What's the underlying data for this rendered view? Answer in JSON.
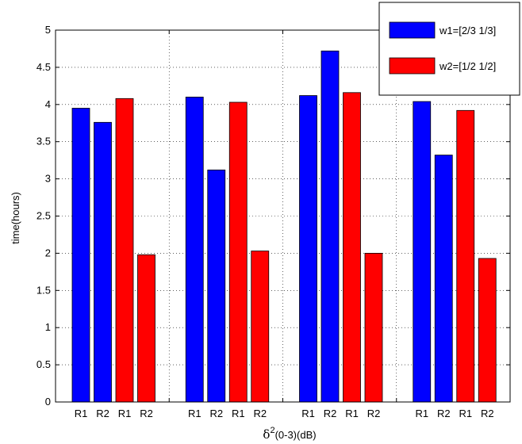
{
  "chart_data": {
    "type": "bar",
    "title": "",
    "ylabel": "time(hours)",
    "xlabel_symbol": "δ",
    "xlabel_sup": "2",
    "xlabel_rest": "(0-3)(dB)",
    "ylim": [
      0,
      5
    ],
    "yticks": [
      "0",
      "0.5",
      "1",
      "1.5",
      "2",
      "2.5",
      "3",
      "3.5",
      "4",
      "4.5",
      "5"
    ],
    "grid": true,
    "legend_position": "top-right",
    "groups": [
      {
        "bars": [
          {
            "label": "R1",
            "series": "w1=[2/3 1/3]",
            "value": 3.95
          },
          {
            "label": "R2",
            "series": "w1=[2/3 1/3]",
            "value": 3.76
          },
          {
            "label": "R1",
            "series": "w2=[1/2 1/2]",
            "value": 4.08
          },
          {
            "label": "R2",
            "series": "w2=[1/2 1/2]",
            "value": 1.98
          }
        ]
      },
      {
        "bars": [
          {
            "label": "R1",
            "series": "w1=[2/3 1/3]",
            "value": 4.1
          },
          {
            "label": "R2",
            "series": "w1=[2/3 1/3]",
            "value": 3.12
          },
          {
            "label": "R1",
            "series": "w2=[1/2 1/2]",
            "value": 4.03
          },
          {
            "label": "R2",
            "series": "w2=[1/2 1/2]",
            "value": 2.03
          }
        ]
      },
      {
        "bars": [
          {
            "label": "R1",
            "series": "w1=[2/3 1/3]",
            "value": 4.12
          },
          {
            "label": "R2",
            "series": "w1=[2/3 1/3]",
            "value": 4.72
          },
          {
            "label": "R1",
            "series": "w2=[1/2 1/2]",
            "value": 4.16
          },
          {
            "label": "R2",
            "series": "w2=[1/2 1/2]",
            "value": 2.0
          }
        ]
      },
      {
        "bars": [
          {
            "label": "R1",
            "series": "w1=[2/3 1/3]",
            "value": 4.04
          },
          {
            "label": "R2",
            "series": "w1=[2/3 1/3]",
            "value": 3.32
          },
          {
            "label": "R1",
            "series": "w2=[1/2 1/2]",
            "value": 3.92
          },
          {
            "label": "R2",
            "series": "w2=[1/2 1/2]",
            "value": 1.93
          }
        ]
      }
    ],
    "series": [
      {
        "name": "w1=[2/3 1/3]",
        "color": "#0000ff"
      },
      {
        "name": "w2=[1/2 1/2]",
        "color": "#ff0000"
      }
    ]
  }
}
